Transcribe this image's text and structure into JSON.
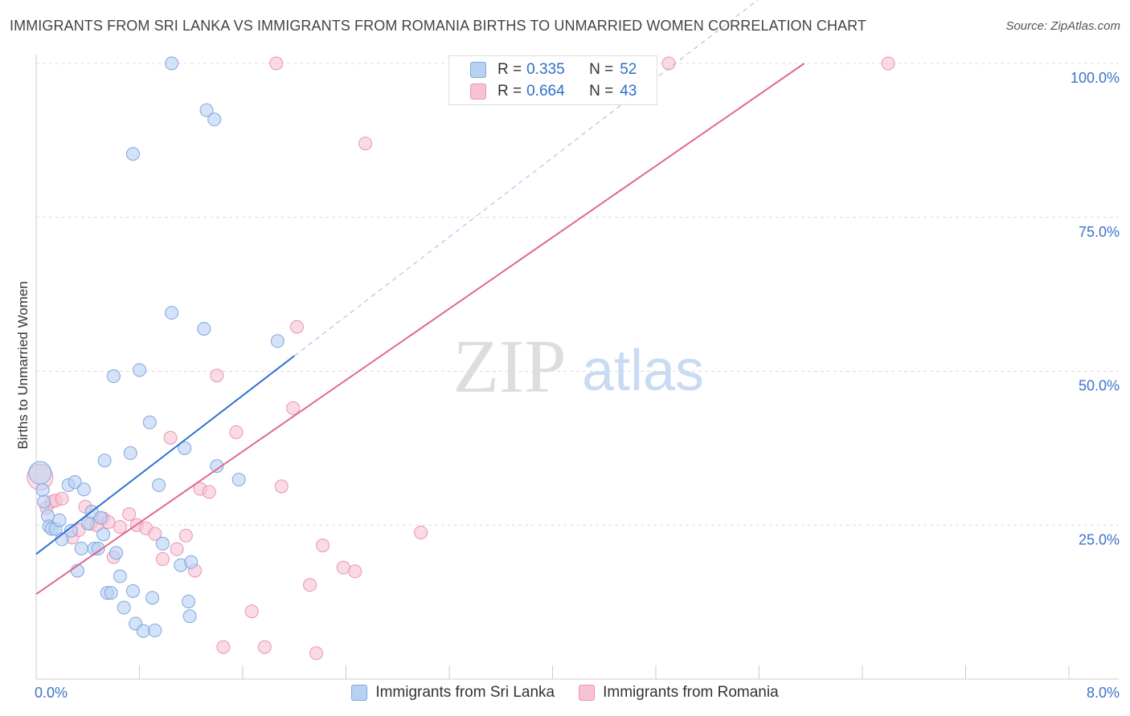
{
  "title": "IMMIGRANTS FROM SRI LANKA VS IMMIGRANTS FROM ROMANIA BIRTHS TO UNMARRIED WOMEN CORRELATION CHART",
  "source": "Source: ZipAtlas.com",
  "watermark": {
    "zip": "ZIP",
    "atlas": "atlas"
  },
  "colors": {
    "blue_fill": "#b8d1f3",
    "blue_stroke": "#7ea6e0",
    "blue_line": "#2f72d0",
    "pink_fill": "#f7c3d3",
    "pink_stroke": "#eb93b0",
    "pink_line": "#e06890",
    "axis_label": "#3d73c8"
  },
  "legend": {
    "r_label": "R =",
    "n_label": "N =",
    "rows": [
      {
        "r": "0.335",
        "n": "52"
      },
      {
        "r": "0.664",
        "n": "43"
      }
    ]
  },
  "chart_data": {
    "type": "scatter",
    "title": "IMMIGRANTS FROM SRI LANKA VS IMMIGRANTS FROM ROMANIA BIRTHS TO UNMARRIED WOMEN CORRELATION CHART",
    "xlabel": "",
    "ylabel": "Births to Unmarried Women",
    "xlim": [
      0,
      8
    ],
    "ylim": [
      0,
      100
    ],
    "x_tick_labels": [
      "0.0%",
      "8.0%"
    ],
    "y_tick_labels": [
      "25.0%",
      "50.0%",
      "75.0%",
      "100.0%"
    ],
    "y_ticks": [
      25,
      50,
      75,
      100
    ],
    "series": [
      {
        "name": "Immigrants from Sri Lanka",
        "r": 0.335,
        "n": 52,
        "trend": {
          "x0": 0.0,
          "y0": 20.3,
          "x1": 2.0,
          "y1": 52.5,
          "dash_to_x": 8.0
        },
        "points": [
          [
            0.03,
            33.5
          ],
          [
            0.05,
            30.7
          ],
          [
            0.06,
            28.8
          ],
          [
            0.09,
            26.5
          ],
          [
            0.1,
            24.8
          ],
          [
            0.12,
            24.4
          ],
          [
            0.15,
            24.4
          ],
          [
            0.18,
            25.8
          ],
          [
            0.2,
            22.7
          ],
          [
            0.25,
            31.5
          ],
          [
            0.27,
            24.1
          ],
          [
            0.3,
            32.0
          ],
          [
            0.32,
            17.6
          ],
          [
            0.35,
            21.2
          ],
          [
            0.37,
            30.8
          ],
          [
            0.4,
            25.3
          ],
          [
            0.43,
            27.2
          ],
          [
            0.45,
            21.2
          ],
          [
            0.48,
            21.2
          ],
          [
            0.5,
            26.2
          ],
          [
            0.52,
            23.5
          ],
          [
            0.53,
            35.5
          ],
          [
            0.55,
            14.0
          ],
          [
            0.58,
            14.0
          ],
          [
            0.6,
            49.2
          ],
          [
            0.62,
            20.5
          ],
          [
            0.65,
            16.7
          ],
          [
            0.68,
            11.6
          ],
          [
            0.73,
            36.7
          ],
          [
            0.75,
            14.3
          ],
          [
            0.77,
            9.0
          ],
          [
            0.8,
            50.2
          ],
          [
            0.83,
            7.8
          ],
          [
            0.88,
            41.7
          ],
          [
            0.9,
            13.2
          ],
          [
            0.92,
            7.9
          ],
          [
            0.95,
            31.5
          ],
          [
            0.98,
            22.0
          ],
          [
            1.05,
            100.0
          ],
          [
            1.05,
            59.5
          ],
          [
            1.12,
            18.5
          ],
          [
            1.15,
            37.5
          ],
          [
            1.18,
            12.6
          ],
          [
            1.19,
            10.2
          ],
          [
            1.2,
            19.0
          ],
          [
            1.3,
            56.9
          ],
          [
            1.32,
            92.4
          ],
          [
            1.38,
            90.9
          ],
          [
            1.4,
            34.6
          ],
          [
            1.57,
            32.4
          ],
          [
            0.75,
            85.3
          ],
          [
            1.87,
            54.9
          ]
        ]
      },
      {
        "name": "Immigrants from Romania",
        "r": 0.664,
        "n": 43,
        "trend": {
          "x0": 0.0,
          "y0": 13.8,
          "x1": 5.95,
          "y1": 100.0
        },
        "points": [
          [
            0.03,
            32.8
          ],
          [
            0.08,
            27.8
          ],
          [
            0.12,
            28.8
          ],
          [
            0.15,
            29.0
          ],
          [
            0.2,
            29.3
          ],
          [
            0.28,
            23.0
          ],
          [
            0.33,
            24.2
          ],
          [
            0.38,
            28.0
          ],
          [
            0.42,
            25.2
          ],
          [
            0.47,
            25.0
          ],
          [
            0.52,
            26.1
          ],
          [
            0.56,
            25.5
          ],
          [
            0.6,
            19.8
          ],
          [
            0.65,
            24.7
          ],
          [
            0.72,
            26.8
          ],
          [
            0.78,
            25.0
          ],
          [
            0.85,
            24.5
          ],
          [
            0.92,
            23.6
          ],
          [
            0.98,
            19.5
          ],
          [
            1.04,
            39.2
          ],
          [
            1.09,
            21.1
          ],
          [
            1.16,
            23.3
          ],
          [
            1.23,
            17.6
          ],
          [
            1.27,
            30.9
          ],
          [
            1.34,
            30.4
          ],
          [
            1.4,
            49.3
          ],
          [
            1.45,
            5.2
          ],
          [
            1.55,
            40.1
          ],
          [
            1.67,
            11.0
          ],
          [
            1.77,
            5.2
          ],
          [
            1.9,
            31.3
          ],
          [
            1.99,
            44.0
          ],
          [
            2.02,
            57.2
          ],
          [
            2.12,
            15.3
          ],
          [
            2.17,
            4.2
          ],
          [
            2.22,
            21.7
          ],
          [
            2.38,
            18.1
          ],
          [
            2.47,
            17.5
          ],
          [
            2.55,
            87.0
          ],
          [
            2.98,
            23.8
          ],
          [
            1.86,
            100.0
          ],
          [
            4.9,
            100.0
          ],
          [
            6.6,
            100.0
          ]
        ]
      }
    ]
  }
}
